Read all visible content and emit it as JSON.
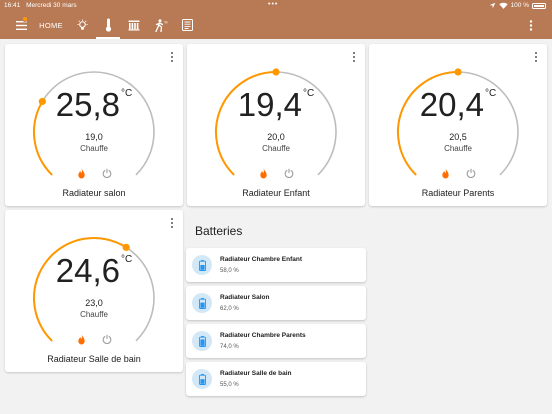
{
  "status_bar": {
    "time": "16:41",
    "date": "Mercredi 30 mars",
    "battery_text": "100 %"
  },
  "toolbar": {
    "home_label": "HOME",
    "icons": [
      "menu-icon",
      "lightbulb-icon",
      "thermometer-icon",
      "radiator-icon",
      "running-person-icon",
      "list-icon",
      "more-vertical-icon"
    ],
    "active_tab": "thermometer"
  },
  "colors": {
    "header": "#b87a55",
    "accent": "#ff9800",
    "ring": "#bdbdbd",
    "battery_icon": "#2196f3"
  },
  "thermostats": [
    {
      "current": "25,8",
      "unit": "°C",
      "target": "19,0",
      "mode": "Chauffe",
      "name": "Radiateur salon",
      "level": 0.28
    },
    {
      "current": "19,4",
      "unit": "°C",
      "target": "20,0",
      "mode": "Chauffe",
      "name": "Radiateur Enfant",
      "level": 0.5
    },
    {
      "current": "20,4",
      "unit": "°C",
      "target": "20,5",
      "mode": "Chauffe",
      "name": "Radiateur Parents",
      "level": 0.5
    },
    {
      "current": "24,6",
      "unit": "°C",
      "target": "23,0",
      "mode": "Chauffe",
      "name": "Radiateur Salle de bain",
      "level": 0.62
    }
  ],
  "batteries": {
    "title": "Batteries",
    "items": [
      {
        "name": "Radiateur Chambre Enfant",
        "value": "58,0 %"
      },
      {
        "name": "Radiateur Salon",
        "value": "62,0 %"
      },
      {
        "name": "Radiateur Chambre Parents",
        "value": "74,0 %"
      },
      {
        "name": "Radiateur Salle de bain",
        "value": "55,0 %"
      }
    ]
  }
}
